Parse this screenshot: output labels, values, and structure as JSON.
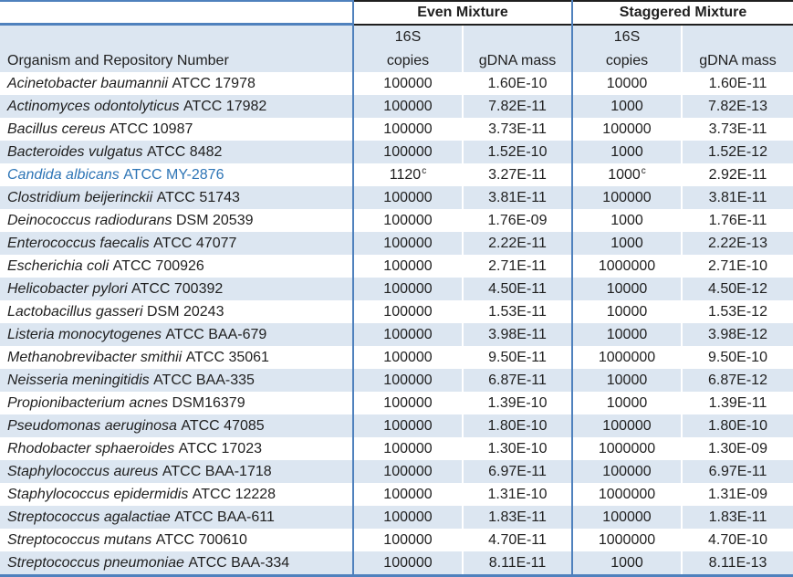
{
  "colors": {
    "stripe_row": "#DCE6F1",
    "blue_border": "#4F81BD",
    "black_border": "#1F1F1F",
    "text": "#1F1F1F",
    "highlight_text": "#2E75B6"
  },
  "table": {
    "group_headers": {
      "even": "Even Mixture",
      "staggered": "Staggered Mixture"
    },
    "column_headers": {
      "organism": "Organism and Repository Number",
      "copies_top": "16S",
      "copies_bottom": "copies",
      "mass": "gDNA mass"
    },
    "rows": [
      {
        "italic": "Acinetobacter baumannii",
        "plain": "ATCC 17978",
        "even_copies": "100000",
        "even_copies_sup": "",
        "even_mass": "1.60E-10",
        "stag_copies": "10000",
        "stag_copies_sup": "",
        "stag_mass": "1.60E-11",
        "highlight": false
      },
      {
        "italic": "Actinomyces odontolyticus",
        "plain": "ATCC 17982",
        "even_copies": "100000",
        "even_copies_sup": "",
        "even_mass": "7.82E-11",
        "stag_copies": "1000",
        "stag_copies_sup": "",
        "stag_mass": "7.82E-13",
        "highlight": false
      },
      {
        "italic": "Bacillus cereus",
        "plain": "ATCC 10987",
        "even_copies": "100000",
        "even_copies_sup": "",
        "even_mass": "3.73E-11",
        "stag_copies": "100000",
        "stag_copies_sup": "",
        "stag_mass": "3.73E-11",
        "highlight": false
      },
      {
        "italic": "Bacteroides vulgatus",
        "plain": "ATCC 8482",
        "even_copies": "100000",
        "even_copies_sup": "",
        "even_mass": "1.52E-10",
        "stag_copies": "1000",
        "stag_copies_sup": "",
        "stag_mass": "1.52E-12",
        "highlight": false
      },
      {
        "italic": "Candida albicans",
        "plain": "ATCC MY-2876",
        "even_copies": "1120",
        "even_copies_sup": "c",
        "even_mass": "3.27E-11",
        "stag_copies": "1000",
        "stag_copies_sup": "c",
        "stag_mass": "2.92E-11",
        "highlight": true
      },
      {
        "italic": "Clostridium beijerinckii",
        "plain": "ATCC 51743",
        "even_copies": "100000",
        "even_copies_sup": "",
        "even_mass": "3.81E-11",
        "stag_copies": "100000",
        "stag_copies_sup": "",
        "stag_mass": "3.81E-11",
        "highlight": false
      },
      {
        "italic": "Deinococcus radiodurans",
        "plain": "DSM 20539",
        "even_copies": "100000",
        "even_copies_sup": "",
        "even_mass": "1.76E-09",
        "stag_copies": "1000",
        "stag_copies_sup": "",
        "stag_mass": "1.76E-11",
        "highlight": false
      },
      {
        "italic": "Enterococcus faecalis",
        "plain": "ATCC 47077",
        "even_copies": "100000",
        "even_copies_sup": "",
        "even_mass": "2.22E-11",
        "stag_copies": "1000",
        "stag_copies_sup": "",
        "stag_mass": "2.22E-13",
        "highlight": false
      },
      {
        "italic": "Escherichia coli",
        "plain": "ATCC 700926",
        "even_copies": "100000",
        "even_copies_sup": "",
        "even_mass": "2.71E-11",
        "stag_copies": "1000000",
        "stag_copies_sup": "",
        "stag_mass": "2.71E-10",
        "highlight": false
      },
      {
        "italic": "Helicobacter pylori",
        "plain": "ATCC 700392",
        "even_copies": "100000",
        "even_copies_sup": "",
        "even_mass": "4.50E-11",
        "stag_copies": "10000",
        "stag_copies_sup": "",
        "stag_mass": "4.50E-12",
        "highlight": false
      },
      {
        "italic": "Lactobacillus gasseri",
        "plain": "DSM 20243",
        "even_copies": "100000",
        "even_copies_sup": "",
        "even_mass": "1.53E-11",
        "stag_copies": "10000",
        "stag_copies_sup": "",
        "stag_mass": "1.53E-12",
        "highlight": false
      },
      {
        "italic": "Listeria monocytogenes",
        "plain": "ATCC BAA-679",
        "even_copies": "100000",
        "even_copies_sup": "",
        "even_mass": "3.98E-11",
        "stag_copies": "10000",
        "stag_copies_sup": "",
        "stag_mass": "3.98E-12",
        "highlight": false
      },
      {
        "italic": "Methanobrevibacter smithii",
        "plain": "ATCC 35061",
        "even_copies": "100000",
        "even_copies_sup": "",
        "even_mass": "9.50E-11",
        "stag_copies": "1000000",
        "stag_copies_sup": "",
        "stag_mass": "9.50E-10",
        "highlight": false
      },
      {
        "italic": "Neisseria meningitidis",
        "plain": "ATCC BAA-335",
        "even_copies": "100000",
        "even_copies_sup": "",
        "even_mass": "6.87E-11",
        "stag_copies": "10000",
        "stag_copies_sup": "",
        "stag_mass": "6.87E-12",
        "highlight": false
      },
      {
        "italic": "Propionibacterium acnes",
        "plain": "DSM16379",
        "even_copies": "100000",
        "even_copies_sup": "",
        "even_mass": "1.39E-10",
        "stag_copies": "10000",
        "stag_copies_sup": "",
        "stag_mass": "1.39E-11",
        "highlight": false
      },
      {
        "italic": "Pseudomonas aeruginosa",
        "plain": "ATCC 47085",
        "even_copies": "100000",
        "even_copies_sup": "",
        "even_mass": "1.80E-10",
        "stag_copies": "100000",
        "stag_copies_sup": "",
        "stag_mass": "1.80E-10",
        "highlight": false
      },
      {
        "italic": "Rhodobacter sphaeroides",
        "plain": "ATCC 17023",
        "even_copies": "100000",
        "even_copies_sup": "",
        "even_mass": "1.30E-10",
        "stag_copies": "1000000",
        "stag_copies_sup": "",
        "stag_mass": "1.30E-09",
        "highlight": false
      },
      {
        "italic": "Staphylococcus aureus",
        "plain": "ATCC BAA-1718",
        "even_copies": "100000",
        "even_copies_sup": "",
        "even_mass": "6.97E-11",
        "stag_copies": "100000",
        "stag_copies_sup": "",
        "stag_mass": "6.97E-11",
        "highlight": false
      },
      {
        "italic": "Staphylococcus epidermidis",
        "plain": "ATCC 12228",
        "even_copies": "100000",
        "even_copies_sup": "",
        "even_mass": "1.31E-10",
        "stag_copies": "1000000",
        "stag_copies_sup": "",
        "stag_mass": "1.31E-09",
        "highlight": false
      },
      {
        "italic": "Streptococcus agalactiae",
        "plain": "ATCC BAA-611",
        "even_copies": "100000",
        "even_copies_sup": "",
        "even_mass": "1.83E-11",
        "stag_copies": "100000",
        "stag_copies_sup": "",
        "stag_mass": "1.83E-11",
        "highlight": false
      },
      {
        "italic": "Streptococcus mutans",
        "plain": "ATCC 700610",
        "even_copies": "100000",
        "even_copies_sup": "",
        "even_mass": "4.70E-11",
        "stag_copies": "1000000",
        "stag_copies_sup": "",
        "stag_mass": "4.70E-10",
        "highlight": false
      },
      {
        "italic": "Streptococcus pneumoniae",
        "plain": "ATCC BAA-334",
        "even_copies": "100000",
        "even_copies_sup": "",
        "even_mass": "8.11E-11",
        "stag_copies": "1000",
        "stag_copies_sup": "",
        "stag_mass": "8.11E-13",
        "highlight": false
      }
    ]
  }
}
